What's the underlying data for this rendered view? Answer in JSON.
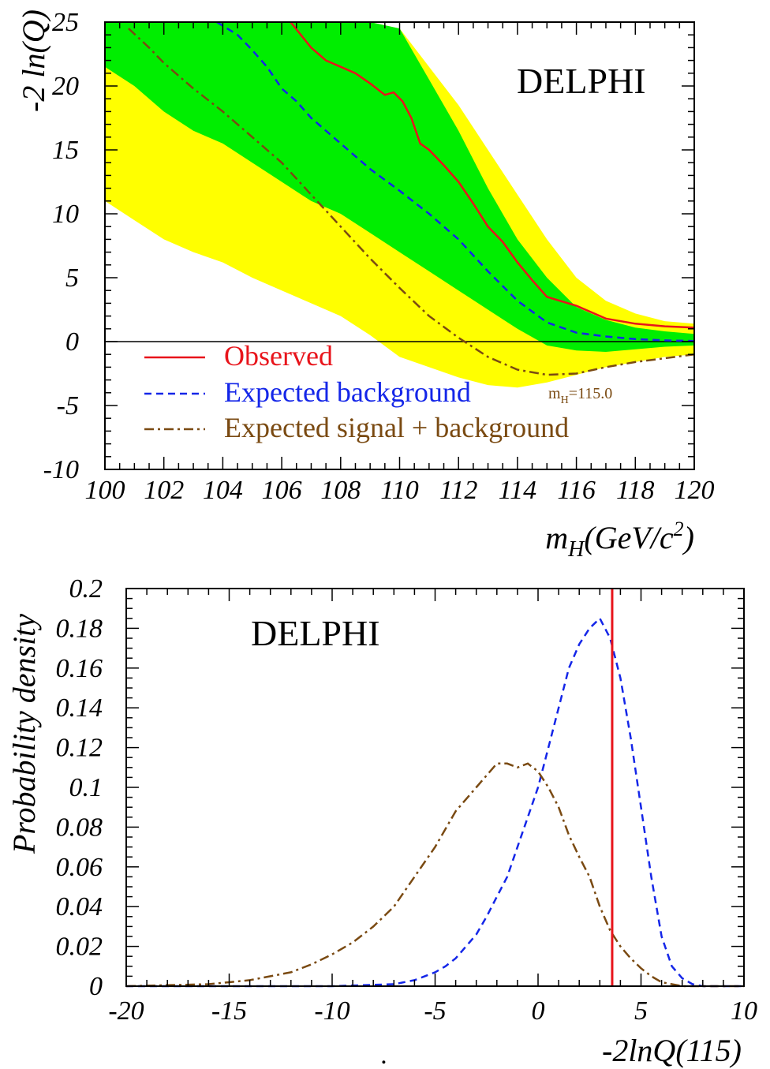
{
  "chart_data": [
    {
      "type": "line",
      "label": "DELPHI",
      "xlabel_main": "m",
      "xlabel_sub": "H",
      "xlabel_rest": "(GeV/c",
      "xlabel_sup": "2",
      "xlabel_close": ")",
      "ylabel": "-2 ln(Q)",
      "xlim": [
        100,
        120
      ],
      "ylim": [
        -10,
        25
      ],
      "xticks": [
        "100",
        "102",
        "104",
        "106",
        "108",
        "110",
        "112",
        "114",
        "116",
        "118",
        "120"
      ],
      "yticks": [
        "-10",
        "-5",
        "0",
        "5",
        "10",
        "15",
        "20",
        "25"
      ],
      "annotation_main": "m",
      "annotation_sub": "H",
      "annotation_rest": "=115.0",
      "legend": [
        {
          "label": "Observed",
          "color": "#e8141b",
          "dash": "solid"
        },
        {
          "label": "Expected background",
          "color": "#1426e8",
          "dash": "dashed"
        },
        {
          "label": "Expected signal + background",
          "color": "#7a4a12",
          "dash": "dashdot"
        }
      ],
      "bands": {
        "colors": {
          "two_sigma": "#ffff00",
          "one_sigma": "#00ee00"
        },
        "x": [
          100,
          101,
          102,
          103,
          104,
          105,
          106,
          107,
          108,
          109,
          110,
          111,
          112,
          113,
          114,
          115,
          116,
          117,
          118,
          119,
          120
        ],
        "two_sigma_low": [
          11,
          9.5,
          8,
          7,
          6.2,
          5,
          4,
          3,
          2,
          0.5,
          -1.2,
          -2,
          -2.8,
          -3.4,
          -3.6,
          -3.2,
          -2.6,
          -2,
          -1.6,
          -1.2,
          -1
        ],
        "two_sigma_high": [
          25,
          25,
          25,
          25,
          25,
          25,
          25,
          25,
          25,
          25,
          24.5,
          21.5,
          18.5,
          15,
          11.5,
          8,
          5,
          3.2,
          2.2,
          1.6,
          1.4
        ],
        "one_sigma_low": [
          21.5,
          20,
          18,
          16.5,
          15.5,
          14,
          12.5,
          11,
          10,
          8.5,
          7,
          5.5,
          4,
          2.5,
          1,
          -0.3,
          -0.7,
          -0.8,
          -0.6,
          -0.4,
          -0.3
        ],
        "one_sigma_high": [
          25,
          25,
          25,
          25,
          25,
          25,
          25,
          25,
          25,
          25,
          24.5,
          20.5,
          16.5,
          12,
          8,
          5,
          2.7,
          1.7,
          1.1,
          0.8,
          0.6
        ]
      },
      "series": [
        {
          "name": "Observed",
          "x": [
            106.3,
            107,
            107.5,
            108,
            108.5,
            109,
            109.5,
            109.8,
            110.1,
            110.4,
            110.7,
            111,
            111.5,
            112,
            112.5,
            113,
            113.5,
            114,
            114.5,
            115,
            116,
            117,
            118,
            119,
            120
          ],
          "y": [
            25,
            23,
            22,
            21.5,
            21,
            20.2,
            19.3,
            19.5,
            18.8,
            17.5,
            15.5,
            15,
            13.8,
            12.5,
            10.8,
            9,
            7.8,
            6.2,
            4.8,
            3.5,
            2.8,
            1.8,
            1.4,
            1.2,
            1.1
          ]
        },
        {
          "name": "Expected background",
          "x": [
            103.8,
            104.5,
            105,
            105.5,
            106,
            106.5,
            107,
            108,
            109,
            110,
            111,
            112,
            113,
            114,
            115,
            116,
            117,
            118,
            119,
            120
          ],
          "y": [
            25,
            24,
            22.8,
            21.5,
            19.8,
            18.8,
            17.5,
            15.5,
            13.5,
            11.8,
            10,
            8,
            5.5,
            3.2,
            1.5,
            0.7,
            0.4,
            0.2,
            0.1,
            0.05
          ]
        },
        {
          "name": "Expected signal + background",
          "x": [
            100.8,
            101.5,
            102,
            103,
            104,
            105,
            106,
            107,
            108,
            109,
            110,
            111,
            112,
            113,
            114,
            115,
            116,
            117,
            118,
            119,
            120
          ],
          "y": [
            24.5,
            23,
            21.8,
            19.8,
            18,
            16,
            14,
            11.5,
            9,
            6.5,
            4.2,
            2,
            0.3,
            -1.2,
            -2.2,
            -2.6,
            -2.5,
            -2,
            -1.6,
            -1.3,
            -1
          ]
        }
      ]
    },
    {
      "type": "line",
      "label": "DELPHI",
      "xlabel": "-2lnQ(115)",
      "ylabel": "Probability density",
      "xlim": [
        -20,
        10
      ],
      "ylim": [
        0,
        0.2
      ],
      "xticks": [
        "-20",
        "-15",
        "-10",
        "-5",
        "0",
        "5",
        "10"
      ],
      "yticks": [
        "0",
        "0.02",
        "0.04",
        "0.06",
        "0.08",
        "0.1",
        "0.12",
        "0.14",
        "0.16",
        "0.18",
        "0.2"
      ],
      "observed_x": 3.6,
      "colors": {
        "observed": "#e8141b",
        "background": "#1426e8",
        "signal_background": "#7a4a12"
      },
      "footnote": ".",
      "series": [
        {
          "name": "Expected background",
          "x": [
            -20,
            -10,
            -7,
            -6,
            -5,
            -4.5,
            -4,
            -3.5,
            -3,
            -2.5,
            -2,
            -1.5,
            -1,
            -0.5,
            0,
            0.5,
            1,
            1.5,
            2,
            2.5,
            3,
            3.5,
            4,
            4.5,
            5,
            5.5,
            6,
            6.5,
            7,
            7.5,
            8,
            10
          ],
          "y": [
            0,
            0,
            0.001,
            0.003,
            0.007,
            0.01,
            0.014,
            0.02,
            0.026,
            0.035,
            0.045,
            0.055,
            0.07,
            0.085,
            0.1,
            0.12,
            0.14,
            0.16,
            0.172,
            0.18,
            0.185,
            0.175,
            0.155,
            0.125,
            0.09,
            0.055,
            0.025,
            0.01,
            0.004,
            0.001,
            0,
            0
          ]
        },
        {
          "name": "Expected signal + background",
          "x": [
            -20,
            -16,
            -14,
            -12,
            -11,
            -10,
            -9,
            -8,
            -7,
            -6,
            -5,
            -4,
            -3,
            -2,
            -1.5,
            -1,
            -0.5,
            0,
            0.5,
            1,
            1.5,
            2,
            2.5,
            3,
            3.5,
            4,
            4.5,
            5,
            5.5,
            6,
            6.5,
            7,
            8,
            10
          ],
          "y": [
            0,
            0.001,
            0.003,
            0.007,
            0.011,
            0.016,
            0.022,
            0.03,
            0.04,
            0.055,
            0.07,
            0.088,
            0.1,
            0.112,
            0.112,
            0.11,
            0.112,
            0.108,
            0.1,
            0.09,
            0.076,
            0.065,
            0.055,
            0.04,
            0.028,
            0.02,
            0.014,
            0.009,
            0.005,
            0.002,
            0.001,
            0,
            0,
            0
          ]
        }
      ]
    }
  ]
}
